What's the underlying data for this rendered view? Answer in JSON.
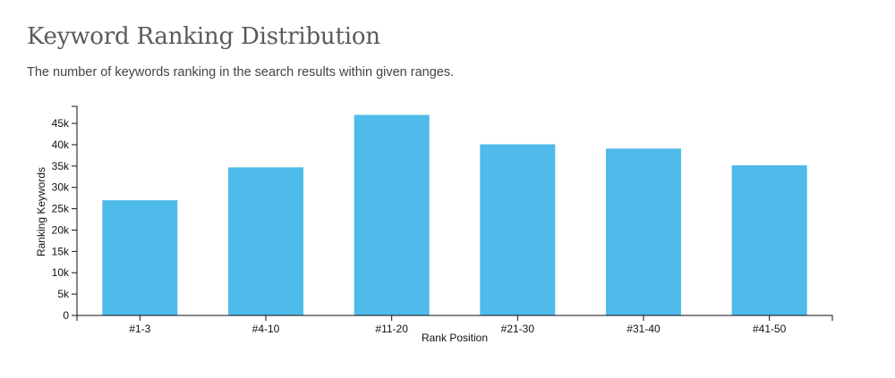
{
  "header": {
    "title": "Keyword Ranking Distribution",
    "subtitle": "The number of keywords ranking in the search results within given ranges."
  },
  "chart_data": {
    "type": "bar",
    "title": "Keyword Ranking Distribution",
    "subtitle": "The number of keywords ranking in the search results within given ranges.",
    "xlabel": "Rank Position",
    "ylabel": "Ranking Keywords",
    "categories": [
      "#1-3",
      "#4-10",
      "#11-20",
      "#21-30",
      "#31-40",
      "#41-50"
    ],
    "values": [
      27000,
      34700,
      47000,
      40100,
      39100,
      35200
    ],
    "ylim": [
      0,
      49000
    ],
    "yticks": [
      0,
      5000,
      10000,
      15000,
      20000,
      25000,
      30000,
      35000,
      40000,
      45000
    ],
    "ytick_labels": [
      "0",
      "5k",
      "10k",
      "15k",
      "20k",
      "25k",
      "30k",
      "35k",
      "40k",
      "45k"
    ],
    "bar_color": "#4ebbea",
    "grid": false,
    "legend": "none"
  }
}
